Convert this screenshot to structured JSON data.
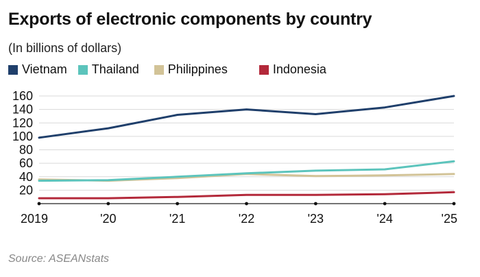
{
  "title": "Exports of electronic components by country",
  "subtitle": "(In billions of dollars)",
  "source": "Source: ASEANstats",
  "chart_data": {
    "type": "line",
    "title": "Exports of electronic components by country",
    "subtitle": "(In billions of dollars)",
    "xlabel": "",
    "ylabel": "",
    "x": [
      "2019",
      "'20",
      "'21",
      "'22",
      "'23",
      "'24",
      "'25"
    ],
    "ylim": [
      0,
      160
    ],
    "yticks": [
      20,
      40,
      60,
      80,
      100,
      120,
      140,
      160
    ],
    "grid": true,
    "legend_position": "top",
    "series": [
      {
        "name": "Vietnam",
        "color": "#1f3f6b",
        "values": [
          98,
          112,
          132,
          140,
          133,
          143,
          160
        ]
      },
      {
        "name": "Thailand",
        "color": "#5cc4bc",
        "values": [
          34,
          35,
          40,
          45,
          49,
          51,
          63
        ]
      },
      {
        "name": "Philippines",
        "color": "#d2c397",
        "values": [
          36,
          34,
          38,
          44,
          41,
          42,
          44
        ]
      },
      {
        "name": "Indonesia",
        "color": "#b3293a",
        "values": [
          8,
          8,
          10,
          13,
          13,
          14,
          17
        ]
      }
    ]
  }
}
